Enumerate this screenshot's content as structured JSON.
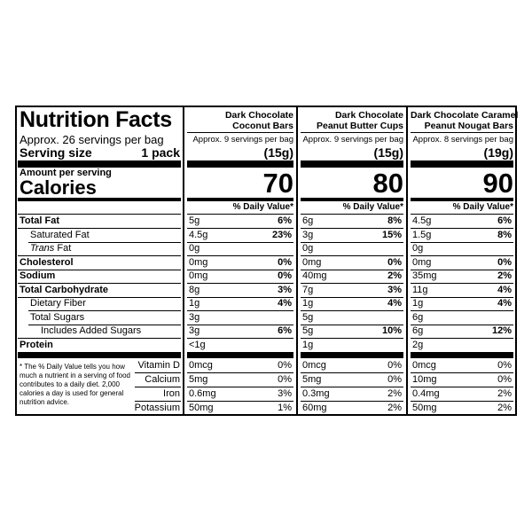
{
  "header": {
    "title": "Nutrition Facts",
    "servings": "Approx. 26 servings per bag",
    "serving_size_label": "Serving size",
    "serving_size": "1 pack",
    "amount_per_serving": "Amount per serving",
    "calories_label": "Calories"
  },
  "nutrients": [
    {
      "label": "Total Fat",
      "level": 0
    },
    {
      "label": "Saturated Fat",
      "level": 1
    },
    {
      "label_prefix_italic": "Trans",
      "label": "Fat",
      "level": 1
    },
    {
      "label": "Cholesterol",
      "level": 0
    },
    {
      "label": "Sodium",
      "level": 0
    },
    {
      "label": "Total Carbohydrate",
      "level": 0
    },
    {
      "label": "Dietary Fiber",
      "level": 1
    },
    {
      "label": "Total Sugars",
      "level": 1
    },
    {
      "label": "Includes Added Sugars",
      "level": 2
    },
    {
      "label": "Protein",
      "level": 0
    }
  ],
  "vitamins": [
    "Vitamin D",
    "Calcium",
    "Iron",
    "Potassium"
  ],
  "footnote": "* The % Daily Value tells you how much a nutrient in a serving of food contributes to a daily diet. 2,000 calories a day is used for general nutrition advice.",
  "products": [
    {
      "name": [
        "Dark Chocolate",
        "Coconut Bars"
      ],
      "servings": "Approx. 9 servings per bag",
      "serving_size": "(15g)",
      "calories": 70,
      "dv_header": "% Daily Value*",
      "nutrients": [
        {
          "amount": "5g",
          "dv": "6%"
        },
        {
          "amount": "4.5g",
          "dv": "23%"
        },
        {
          "amount": "0g"
        },
        {
          "amount": "0mg",
          "dv": "0%"
        },
        {
          "amount": "0mg",
          "dv": "0%"
        },
        {
          "amount": "8g",
          "dv": "3%"
        },
        {
          "amount": "1g",
          "dv": "4%"
        },
        {
          "amount": "3g"
        },
        {
          "amount": "3g",
          "dv": "6%"
        },
        {
          "amount": "<1g"
        }
      ],
      "vitamins": [
        {
          "amount": "0mcg",
          "dv": "0%"
        },
        {
          "amount": "5mg",
          "dv": "0%"
        },
        {
          "amount": "0.6mg",
          "dv": "3%"
        },
        {
          "amount": "50mg",
          "dv": "1%"
        }
      ]
    },
    {
      "name": [
        "Dark Chocolate",
        "Peanut Butter Cups"
      ],
      "servings": "Approx. 9 servings per bag",
      "serving_size": "(15g)",
      "calories": 80,
      "dv_header": "% Daily Value*",
      "nutrients": [
        {
          "amount": "6g",
          "dv": "8%"
        },
        {
          "amount": "3g",
          "dv": "15%"
        },
        {
          "amount": "0g"
        },
        {
          "amount": "0mg",
          "dv": "0%"
        },
        {
          "amount": "40mg",
          "dv": "2%"
        },
        {
          "amount": "7g",
          "dv": "3%"
        },
        {
          "amount": "1g",
          "dv": "4%"
        },
        {
          "amount": "5g"
        },
        {
          "amount": "5g",
          "dv": "10%"
        },
        {
          "amount": "1g"
        }
      ],
      "vitamins": [
        {
          "amount": "0mcg",
          "dv": "0%"
        },
        {
          "amount": "5mg",
          "dv": "0%"
        },
        {
          "amount": "0.3mg",
          "dv": "2%"
        },
        {
          "amount": "60mg",
          "dv": "2%"
        }
      ]
    },
    {
      "name": [
        "Dark Chocolate Caramel",
        "Peanut Nougat Bars"
      ],
      "servings": "Approx. 8 servings per bag",
      "serving_size": "(19g)",
      "calories": 90,
      "dv_header": "% Daily Value*",
      "nutrients": [
        {
          "amount": "4.5g",
          "dv": "6%"
        },
        {
          "amount": "1.5g",
          "dv": "8%"
        },
        {
          "amount": "0g"
        },
        {
          "amount": "0mg",
          "dv": "0%"
        },
        {
          "amount": "35mg",
          "dv": "2%"
        },
        {
          "amount": "11g",
          "dv": "4%"
        },
        {
          "amount": "1g",
          "dv": "4%"
        },
        {
          "amount": "6g"
        },
        {
          "amount": "6g",
          "dv": "12%"
        },
        {
          "amount": "2g"
        }
      ],
      "vitamins": [
        {
          "amount": "0mcg",
          "dv": "0%"
        },
        {
          "amount": "10mg",
          "dv": "0%"
        },
        {
          "amount": "0.4mg",
          "dv": "2%"
        },
        {
          "amount": "50mg",
          "dv": "2%"
        }
      ]
    }
  ]
}
